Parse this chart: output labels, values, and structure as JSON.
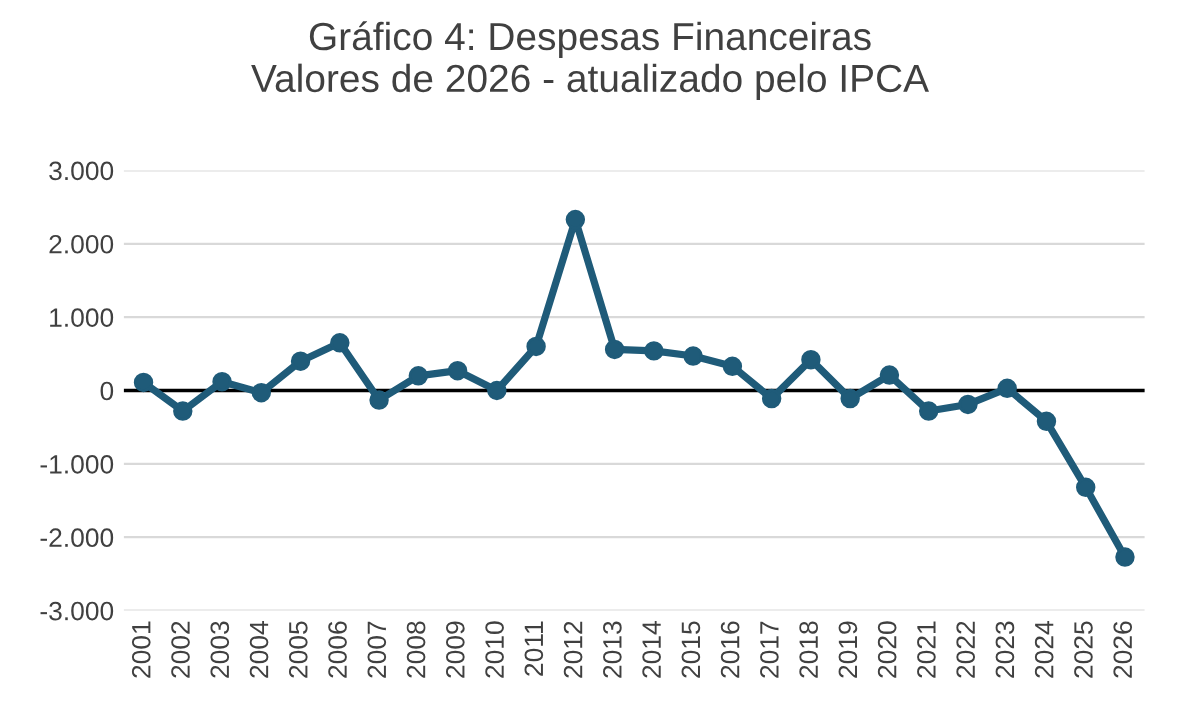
{
  "chart_data": {
    "type": "line",
    "title": "Gráfico 4: Despesas Financeiras\nValores de 2026 - atualizado pelo IPCA",
    "categories": [
      "2001",
      "2002",
      "2003",
      "2004",
      "2005",
      "2006",
      "2007",
      "2008",
      "2009",
      "2010",
      "2011",
      "2012",
      "2013",
      "2014",
      "2015",
      "2016",
      "2017",
      "2018",
      "2019",
      "2020",
      "2021",
      "2022",
      "2023",
      "2024",
      "2025",
      "2026"
    ],
    "series": [
      {
        "color": "#1f5b79",
        "values": [
          110,
          -280,
          120,
          -30,
          400,
          650,
          -130,
          200,
          270,
          0,
          600,
          2330,
          560,
          540,
          470,
          330,
          -110,
          420,
          -110,
          210,
          -280,
          -190,
          30,
          -420,
          -1320,
          -2270
        ]
      }
    ],
    "ylim": [
      -3000,
      3000
    ],
    "yticks": [
      {
        "value": -3000,
        "label": "-3.000"
      },
      {
        "value": -2000,
        "label": "-2.000"
      },
      {
        "value": -1000,
        "label": "-1.000"
      },
      {
        "value": 0,
        "label": "0"
      },
      {
        "value": 1000,
        "label": "1.000"
      },
      {
        "value": 2000,
        "label": "2.000"
      },
      {
        "value": 3000,
        "label": "3.000"
      }
    ],
    "grid": "y",
    "marker": "circle",
    "line_style": "solid",
    "legend": false,
    "ref_lines": [
      {
        "axis": "y",
        "value": 0,
        "color": "#000000"
      }
    ]
  }
}
